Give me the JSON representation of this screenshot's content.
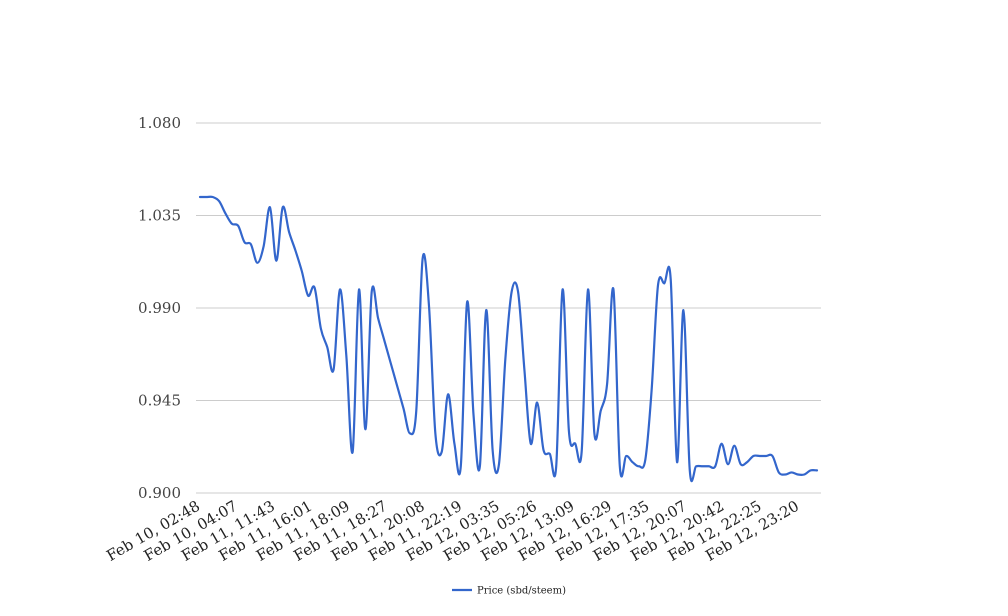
{
  "chart_data": {
    "type": "line",
    "title": "",
    "xlabel": "",
    "ylabel": "",
    "ylim": [
      0.9,
      1.08
    ],
    "yticks": [
      "0.900",
      "0.945",
      "0.990",
      "1.035",
      "1.080"
    ],
    "grid": true,
    "legend_position": "bottom-center",
    "x_tick_labels": [
      "Feb 10, 02:48",
      "Feb 10, 04:07",
      "Feb 11, 11:43",
      "Feb 11, 16:01",
      "Feb 11, 18:09",
      "Feb 11, 18:27",
      "Feb 11, 20:08",
      "Feb 11, 22:19",
      "Feb 12, 03:35",
      "Feb 12, 05:26",
      "Feb 12, 13:09",
      "Feb 12, 16:29",
      "Feb 12, 17:35",
      "Feb 12, 20:07",
      "Feb 12, 20:42",
      "Feb 12, 22:25",
      "Feb 12, 23:20"
    ],
    "series": [
      {
        "name": "Price (sbd/steem)",
        "color": "#3366cc",
        "values": [
          1.044,
          1.044,
          1.044,
          1.042,
          1.036,
          1.031,
          1.03,
          1.022,
          1.021,
          1.012,
          1.02,
          1.039,
          1.013,
          1.039,
          1.027,
          1.018,
          1.008,
          0.996,
          1.0,
          0.98,
          0.971,
          0.96,
          0.999,
          0.967,
          0.92,
          0.999,
          0.931,
          0.998,
          0.985,
          0.974,
          0.963,
          0.952,
          0.941,
          0.929,
          0.94,
          1.014,
          0.991,
          0.929,
          0.92,
          0.948,
          0.924,
          0.913,
          0.993,
          0.938,
          0.913,
          0.989,
          0.921,
          0.914,
          0.965,
          0.998,
          0.998,
          0.96,
          0.924,
          0.944,
          0.921,
          0.919,
          0.913,
          0.999,
          0.93,
          0.924,
          0.92,
          0.999,
          0.929,
          0.94,
          0.953,
          0.999,
          0.913,
          0.918,
          0.915,
          0.913,
          0.916,
          0.95,
          1.001,
          1.002,
          1.004,
          0.915,
          0.989,
          0.911,
          0.913,
          0.913,
          0.913,
          0.913,
          0.924,
          0.914,
          0.923,
          0.914,
          0.915,
          0.918,
          0.918,
          0.918,
          0.918,
          0.91,
          0.909,
          0.91,
          0.909,
          0.909,
          0.911,
          0.911
        ]
      }
    ]
  }
}
